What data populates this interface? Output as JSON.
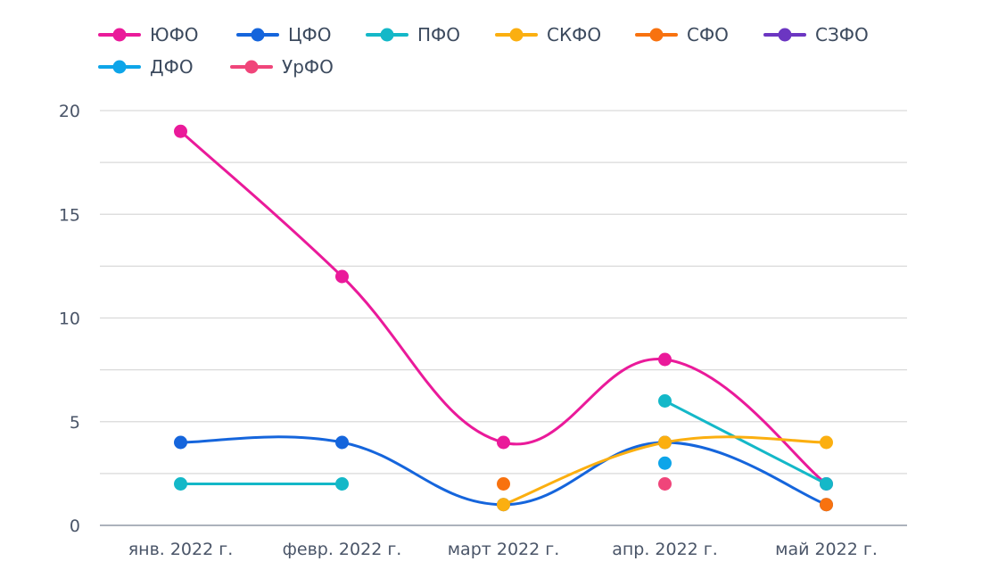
{
  "chart_data": {
    "type": "line",
    "categories": [
      "янв. 2022 г.",
      "февр. 2022 г.",
      "март 2022 г.",
      "апр. 2022 г.",
      "май 2022 г."
    ],
    "ylim": [
      0,
      20
    ],
    "yticks": [
      0,
      5,
      10,
      15,
      20
    ],
    "grid": true,
    "legend_position": "top",
    "series": [
      {
        "name": "ЮФО",
        "color": "#ea1a9a",
        "values": [
          19,
          12,
          4,
          8,
          2
        ]
      },
      {
        "name": "ЦФО",
        "color": "#1565dc",
        "values": [
          4,
          4,
          1,
          4,
          1
        ]
      },
      {
        "name": "ПФО",
        "color": "#14b8c8",
        "values": [
          2,
          2,
          null,
          6,
          2
        ]
      },
      {
        "name": "СКФО",
        "color": "#fbaf10",
        "values": [
          null,
          null,
          1,
          4,
          4
        ]
      },
      {
        "name": "СФО",
        "color": "#f8720f",
        "values": [
          null,
          null,
          2,
          null,
          1
        ]
      },
      {
        "name": "СЗФО",
        "color": "#6c36c2",
        "values": [
          null,
          null,
          null,
          null,
          null
        ]
      },
      {
        "name": "ДФО",
        "color": "#0ea5e9",
        "values": [
          null,
          null,
          null,
          3,
          null
        ]
      },
      {
        "name": "УрФО",
        "color": "#f0457a",
        "values": [
          null,
          null,
          null,
          2,
          null
        ]
      }
    ]
  }
}
